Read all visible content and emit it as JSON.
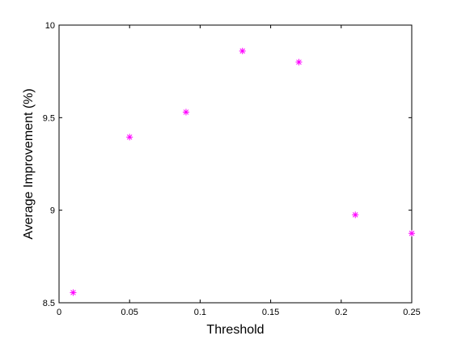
{
  "chart_data": {
    "type": "scatter",
    "title": "",
    "xlabel": "Threshold",
    "ylabel": "Average Improvement (%)",
    "xlim": [
      0,
      0.25
    ],
    "ylim": [
      8.5,
      10
    ],
    "grid": false,
    "legend": "none",
    "x_ticks": [
      "0",
      "0.05",
      "0.1",
      "0.15",
      "0.2",
      "0.25"
    ],
    "y_ticks": [
      "8.5",
      "9",
      "9.5",
      "10"
    ],
    "marker": "asterisk",
    "marker_color": "#ff00ff",
    "series": [
      {
        "x": [
          0.01,
          0.05,
          0.09,
          0.13,
          0.17,
          0.21,
          0.25
        ],
        "y": [
          8.555,
          9.395,
          9.53,
          9.86,
          9.8,
          8.975,
          8.875
        ]
      }
    ]
  }
}
